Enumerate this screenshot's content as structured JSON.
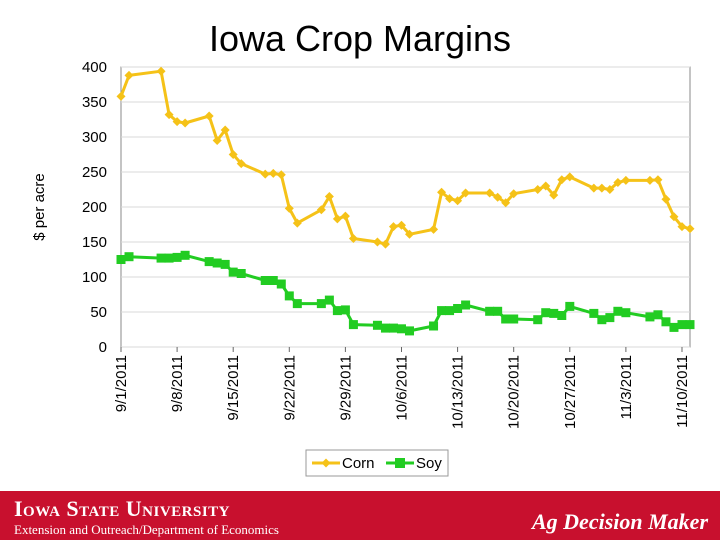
{
  "colors": {
    "corn": "#f5c218",
    "soy": "#22cc22",
    "footer": "#c8102e",
    "grid": "#d9d9d9"
  },
  "footer": {
    "university": "Iowa State University",
    "department": "Extension and Outreach/Department of Economics",
    "brand": "Ag Decision Maker"
  },
  "chart_data": {
    "type": "line",
    "title": "Iowa Crop Margins",
    "xlabel": "",
    "ylabel": "$ per acre",
    "ylim": [
      0,
      400
    ],
    "yticks": [
      0,
      50,
      100,
      150,
      200,
      250,
      300,
      350,
      400
    ],
    "xlim": [
      0,
      72
    ],
    "xticks": [
      {
        "day": 0,
        "label": "9/1/2011"
      },
      {
        "day": 7,
        "label": "9/8/2011"
      },
      {
        "day": 14,
        "label": "9/15/2011"
      },
      {
        "day": 21,
        "label": "9/22/2011"
      },
      {
        "day": 28,
        "label": "9/29/2011"
      },
      {
        "day": 35,
        "label": "10/6/2011"
      },
      {
        "day": 42,
        "label": "10/13/2011"
      },
      {
        "day": 49,
        "label": "10/20/2011"
      },
      {
        "day": 56,
        "label": "10/27/2011"
      },
      {
        "day": 63,
        "label": "11/3/2011"
      },
      {
        "day": 70,
        "label": "11/10/2011"
      }
    ],
    "grid": true,
    "legend_position": "bottom",
    "series": [
      {
        "name": "Corn",
        "x": [
          0,
          1,
          5,
          6,
          7,
          8,
          11,
          12,
          13,
          14,
          15,
          18,
          19,
          20,
          21,
          22,
          25,
          26,
          27,
          28,
          29,
          32,
          33,
          34,
          35,
          36,
          39,
          40,
          41,
          42,
          43,
          46,
          47,
          48,
          49,
          52,
          53,
          54,
          55,
          56,
          59,
          60,
          61,
          62,
          63,
          66,
          67,
          68,
          69,
          70,
          73
        ],
        "values": [
          358,
          388,
          394,
          332,
          322,
          320,
          330,
          295,
          310,
          275,
          262,
          247,
          248,
          246,
          198,
          177,
          196,
          215,
          183,
          187,
          155,
          150,
          147,
          172,
          174,
          161,
          168,
          221,
          212,
          209,
          220,
          220,
          214,
          206,
          219,
          225,
          230,
          217,
          239,
          243,
          227,
          227,
          225,
          235,
          238,
          238,
          239,
          211,
          186,
          172,
          169
        ]
      },
      {
        "name": "Soy",
        "x": [
          0,
          1,
          5,
          6,
          7,
          8,
          11,
          12,
          13,
          14,
          15,
          18,
          19,
          20,
          21,
          22,
          25,
          26,
          27,
          28,
          29,
          32,
          33,
          34,
          35,
          36,
          39,
          40,
          41,
          42,
          43,
          46,
          47,
          48,
          49,
          52,
          53,
          54,
          55,
          56,
          59,
          60,
          61,
          62,
          63,
          66,
          67,
          68,
          69,
          70,
          73
        ],
        "values": [
          125,
          129,
          127,
          127,
          128,
          131,
          122,
          120,
          118,
          107,
          105,
          95,
          95,
          90,
          73,
          62,
          62,
          67,
          52,
          53,
          32,
          31,
          27,
          27,
          26,
          23,
          30,
          52,
          52,
          55,
          60,
          51,
          51,
          40,
          40,
          39,
          49,
          48,
          45,
          58,
          48,
          39,
          42,
          51,
          49,
          43,
          46,
          36,
          28,
          32,
          32
        ]
      }
    ]
  }
}
